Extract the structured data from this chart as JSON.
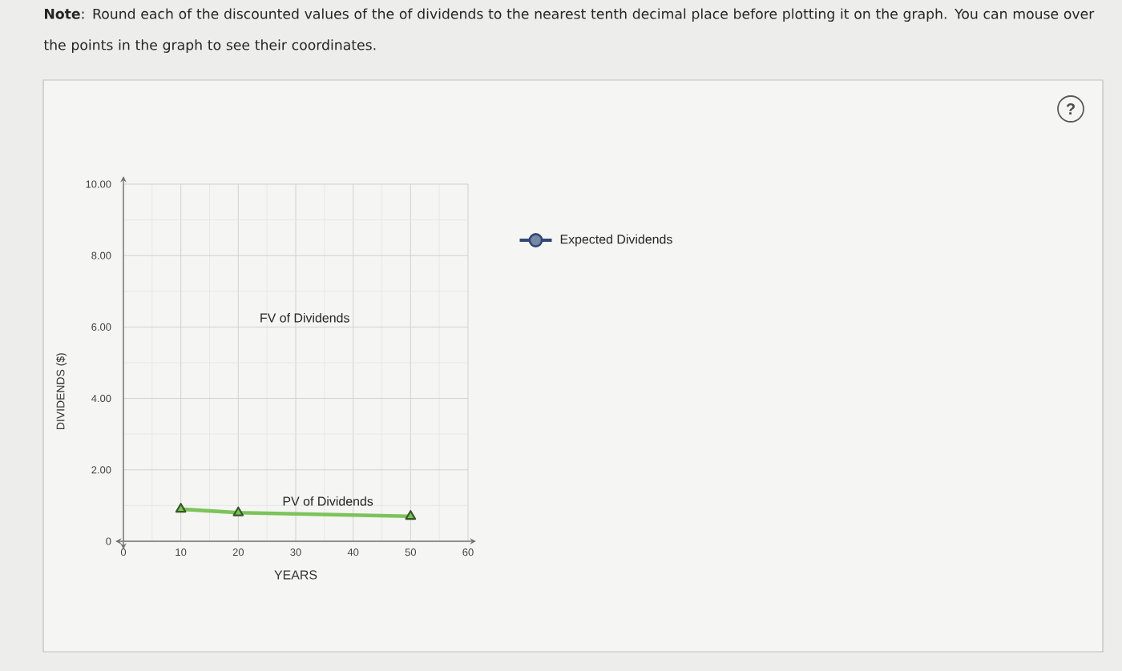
{
  "chart_data": {
    "type": "line",
    "xlabel": "YEARS",
    "ylabel": "DIVIDENDS ($)",
    "annotations": [
      "**Note**: Round each of the discounted values of the of dividends to the nearest tenth decimal place before plotting it on the graph. You can mouse over the points in the graph to see their coordinates.",
      "FV of Dividends",
      "?"
    ],
    "xlim": [
      0,
      60
    ],
    "ylim": [
      0,
      10
    ],
    "xticks": [
      0,
      10,
      20,
      30,
      40,
      50,
      60
    ],
    "yticks": [
      0,
      {
        "value": 2,
        "label": "2.00"
      },
      {
        "value": 4,
        "label": "4.00"
      },
      {
        "value": 6,
        "label": "6.00"
      },
      {
        "value": 8,
        "label": "8.00"
      },
      {
        "value": 10,
        "label": "10.00"
      }
    ],
    "grid": true,
    "legend": "right",
    "series": [
      {
        "name": "PV of Dividends",
        "color": "#7cc35a",
        "marker": "triangle",
        "x": [
          10,
          20,
          50
        ],
        "values": [
          0.9,
          0.8,
          0.7
        ]
      },
      {
        "name": "Expected Dividends",
        "color": "#2f4676",
        "marker": "circle"
      }
    ]
  }
}
